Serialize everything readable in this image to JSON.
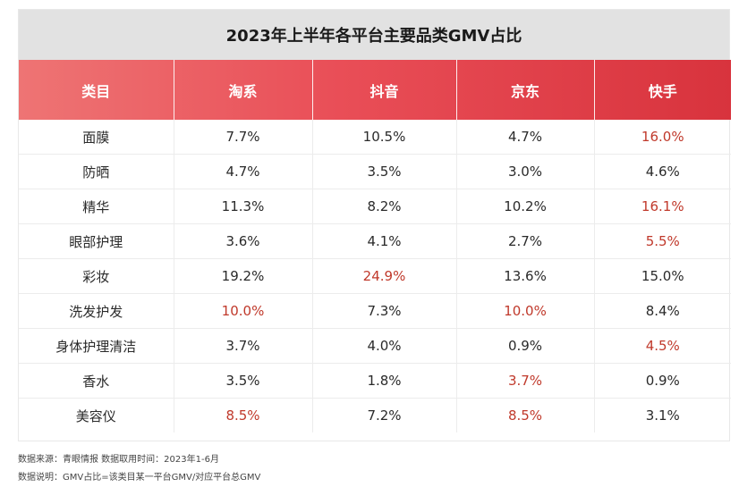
{
  "chart_data": {
    "type": "table",
    "title": "2023年上半年各平台主要品类GMV占比",
    "columns": [
      "类目",
      "淘系",
      "抖音",
      "京东",
      "快手"
    ],
    "rows": [
      {
        "category": "面膜",
        "values": [
          "7.7%",
          "10.5%",
          "4.7%",
          "16.0%"
        ],
        "highlight": [
          false,
          false,
          false,
          true
        ]
      },
      {
        "category": "防晒",
        "values": [
          "4.7%",
          "3.5%",
          "3.0%",
          "4.6%"
        ],
        "highlight": [
          false,
          false,
          false,
          false
        ]
      },
      {
        "category": "精华",
        "values": [
          "11.3%",
          "8.2%",
          "10.2%",
          "16.1%"
        ],
        "highlight": [
          false,
          false,
          false,
          true
        ]
      },
      {
        "category": "眼部护理",
        "values": [
          "3.6%",
          "4.1%",
          "2.7%",
          "5.5%"
        ],
        "highlight": [
          false,
          false,
          false,
          true
        ]
      },
      {
        "category": "彩妆",
        "values": [
          "19.2%",
          "24.9%",
          "13.6%",
          "15.0%"
        ],
        "highlight": [
          false,
          true,
          false,
          false
        ]
      },
      {
        "category": "洗发护发",
        "values": [
          "10.0%",
          "7.3%",
          "10.0%",
          "8.4%"
        ],
        "highlight": [
          true,
          false,
          true,
          false
        ]
      },
      {
        "category": "身体护理清洁",
        "values": [
          "3.7%",
          "4.0%",
          "0.9%",
          "4.5%"
        ],
        "highlight": [
          false,
          false,
          false,
          true
        ]
      },
      {
        "category": "香水",
        "values": [
          "3.5%",
          "1.8%",
          "3.7%",
          "0.9%"
        ],
        "highlight": [
          false,
          false,
          true,
          false
        ]
      },
      {
        "category": "美容仪",
        "values": [
          "8.5%",
          "7.2%",
          "8.5%",
          "3.1%"
        ],
        "highlight": [
          true,
          false,
          true,
          false
        ]
      }
    ]
  },
  "notes": {
    "source": "数据来源：青眼情报   数据取用时间：2023年1-6月",
    "definition": "数据说明：GMV占比=该类目某一平台GMV/对应平台总GMV"
  },
  "colors": {
    "header_gradient": [
      "#ee7474",
      "#d8333d"
    ],
    "highlight_text": "#c0392b",
    "title_background": "#e2e2e2"
  }
}
